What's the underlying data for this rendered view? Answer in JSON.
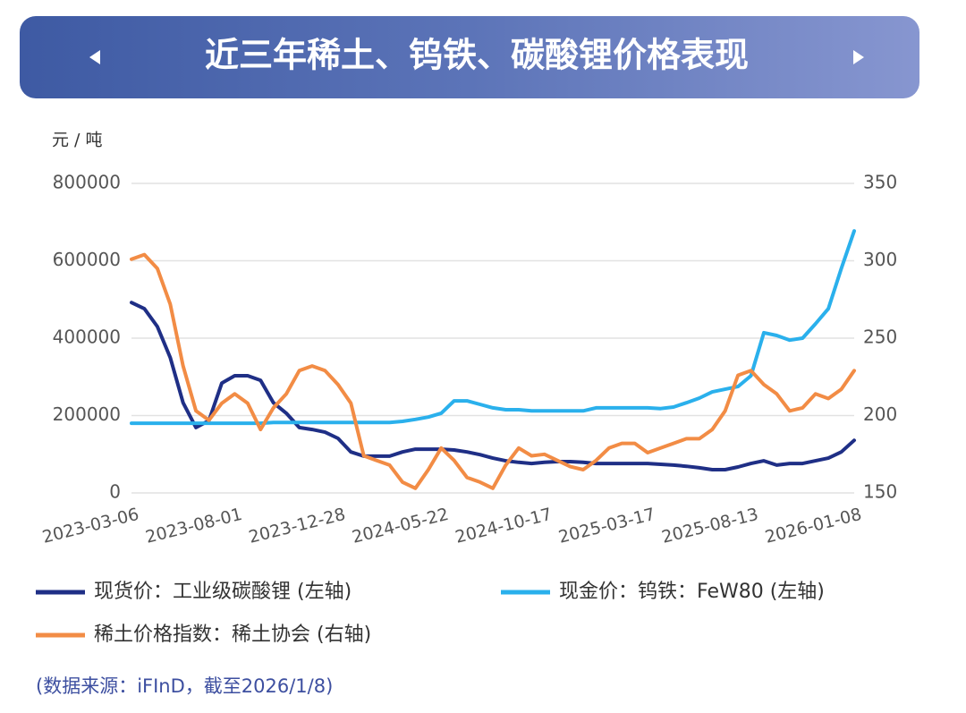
{
  "chart_data": {
    "type": "line",
    "title": "近三年稀土、钨铁、碳酸锂价格表现",
    "y_label": "元 / 吨",
    "source": "(数据来源：iFInD，截至2026/1/8)",
    "categories": [
      "2023-03-06",
      null,
      null,
      null,
      null,
      null,
      null,
      null,
      "2023-08-01",
      null,
      null,
      null,
      null,
      null,
      null,
      null,
      "2023-12-28",
      null,
      null,
      null,
      null,
      null,
      null,
      null,
      "2024-05-22",
      null,
      null,
      null,
      null,
      null,
      null,
      null,
      "2024-10-17",
      null,
      null,
      null,
      null,
      null,
      null,
      null,
      "2025-03-17",
      null,
      null,
      null,
      null,
      null,
      null,
      null,
      "2025-08-13",
      null,
      null,
      null,
      null,
      null,
      null,
      null,
      "2026-01-08"
    ],
    "ylim": [
      0,
      800000
    ],
    "yticks": [
      0,
      200000,
      400000,
      600000,
      800000
    ],
    "y2lim": [
      150,
      350
    ],
    "y2ticks": [
      150,
      200,
      250,
      300,
      350
    ],
    "grid": true,
    "series": [
      {
        "name": "现货价：工业级碳酸锂 (左轴)",
        "color": "#1f2f86",
        "values": [
          492000,
          476000,
          430000,
          350000,
          233000,
          169000,
          187000,
          284000,
          303000,
          303000,
          291000,
          233000,
          206000,
          169000,
          164000,
          157000,
          141000,
          106000,
          95000,
          95000,
          95000,
          106000,
          113000,
          113000,
          113000,
          111000,
          106000,
          99000,
          90000,
          83000,
          79000,
          76000,
          79000,
          81000,
          81000,
          79000,
          76000,
          76000,
          76000,
          76000,
          76000,
          74000,
          72000,
          69000,
          65000,
          60000,
          60000,
          67000,
          76000,
          83000,
          72000,
          76000,
          76000,
          83000,
          90000,
          106000,
          136000
        ]
      },
      {
        "name": "现金价：钨铁：FeW80 (左轴)",
        "color": "#2ab0ec",
        "values": [
          180000,
          180000,
          180000,
          180000,
          180000,
          180000,
          180000,
          180000,
          180000,
          180000,
          180000,
          182000,
          182000,
          182000,
          182000,
          182000,
          182000,
          182000,
          182000,
          182000,
          182000,
          185000,
          190000,
          196000,
          206000,
          238000,
          238000,
          229000,
          220000,
          215000,
          215000,
          212000,
          212000,
          212000,
          212000,
          212000,
          220000,
          220000,
          220000,
          220000,
          220000,
          218000,
          222000,
          233000,
          245000,
          261000,
          268000,
          275000,
          303000,
          414000,
          407000,
          395000,
          400000,
          437000,
          476000,
          580000,
          677000
        ]
      },
      {
        "name": "稀土价格指数：稀土协会 (右轴)",
        "color": "#f28c45",
        "axis": "y2",
        "values": [
          301,
          304,
          295,
          272,
          232,
          203,
          197,
          208,
          214,
          208,
          191,
          205,
          214,
          229,
          232,
          229,
          220,
          208,
          174,
          171,
          168,
          157,
          153,
          165,
          179,
          171,
          160,
          157,
          153,
          168,
          179,
          174,
          175,
          171,
          167,
          165,
          171,
          179,
          182,
          182,
          176,
          179,
          182,
          185,
          185,
          191,
          203,
          226,
          229,
          220,
          214,
          203,
          205,
          214,
          211,
          217,
          229
        ]
      }
    ]
  }
}
